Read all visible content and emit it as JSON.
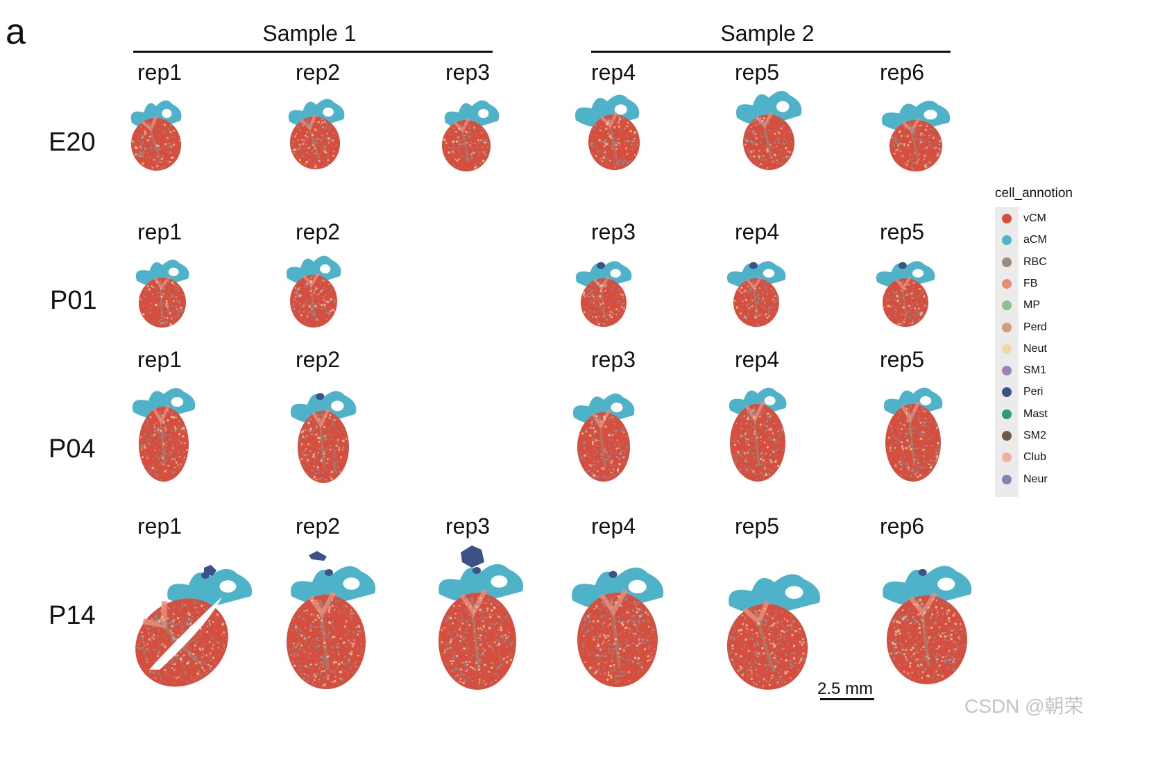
{
  "panel_letter": "a",
  "samples": [
    {
      "title": "Sample 1"
    },
    {
      "title": "Sample 2"
    }
  ],
  "rows": [
    {
      "stage": "E20",
      "columns": [
        {
          "rep": "rep1"
        },
        {
          "rep": "rep2"
        },
        {
          "rep": "rep3"
        },
        {
          "rep": "rep4"
        },
        {
          "rep": "rep5"
        },
        {
          "rep": "rep6"
        }
      ]
    },
    {
      "stage": "P01",
      "columns": [
        {
          "rep": "rep1"
        },
        {
          "rep": "rep2"
        },
        null,
        {
          "rep": "rep3"
        },
        {
          "rep": "rep4"
        },
        {
          "rep": "rep5"
        }
      ]
    },
    {
      "stage": "P04",
      "columns": [
        {
          "rep": "rep1"
        },
        {
          "rep": "rep2"
        },
        null,
        {
          "rep": "rep3"
        },
        {
          "rep": "rep4"
        },
        {
          "rep": "rep5"
        }
      ]
    },
    {
      "stage": "P14",
      "columns": [
        {
          "rep": "rep1"
        },
        {
          "rep": "rep2"
        },
        {
          "rep": "rep3"
        },
        {
          "rep": "rep4"
        },
        {
          "rep": "rep5"
        },
        {
          "rep": "rep6"
        }
      ]
    }
  ],
  "legend": {
    "title": "cell_annotion",
    "items": [
      {
        "label": "vCM",
        "color": "#d64f3e"
      },
      {
        "label": "aCM",
        "color": "#4eb3c8"
      },
      {
        "label": "RBC",
        "color": "#9c8a7a"
      },
      {
        "label": "FB",
        "color": "#ea8c7a"
      },
      {
        "label": "MP",
        "color": "#8cc08c"
      },
      {
        "label": "Perd",
        "color": "#d49c78"
      },
      {
        "label": "Neut",
        "color": "#f1d8a4"
      },
      {
        "label": "SM1",
        "color": "#9c82b4"
      },
      {
        "label": "Peri",
        "color": "#3b5188"
      },
      {
        "label": "Mast",
        "color": "#2e9a82"
      },
      {
        "label": "SM2",
        "color": "#6e5848"
      },
      {
        "label": "Club",
        "color": "#efb0a4"
      },
      {
        "label": "Neur",
        "color": "#7a88b0"
      }
    ]
  },
  "scale_bar": {
    "label": "2.5 mm"
  },
  "watermark": "CSDN @朝荣"
}
